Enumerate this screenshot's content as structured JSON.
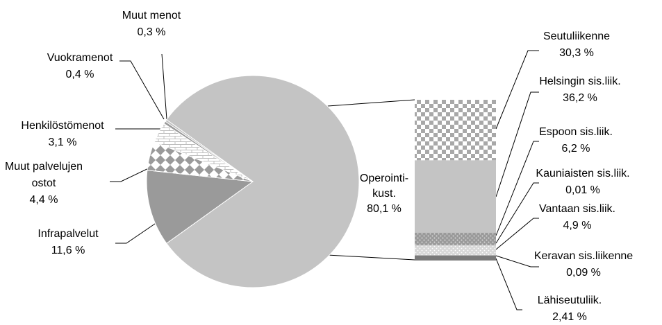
{
  "chart_data": {
    "type": "pie",
    "title": "",
    "pie": {
      "slices": [
        {
          "label": "Operointi-kust.",
          "label_lines": [
            "Operointi-",
            "kust."
          ],
          "value_text": "80,1 %",
          "value": 80.1,
          "color": "#c4c4c4",
          "pattern": "solid"
        },
        {
          "label": "Infrapalvelut",
          "label_lines": [
            "Infrapalvelut"
          ],
          "value_text": "11,6 %",
          "value": 11.6,
          "color": "#9a9a9a",
          "pattern": "solid"
        },
        {
          "label": "Muut palvelujen ostot",
          "label_lines": [
            "Muut palvelujen",
            "ostot"
          ],
          "value_text": "4,4 %",
          "value": 4.4,
          "color": "#9a9a9a",
          "pattern": "diamond"
        },
        {
          "label": "Henkilöstömenot",
          "label_lines": [
            "Henkilöstömenot"
          ],
          "value_text": "3,1 %",
          "value": 3.1,
          "color": "#ffffff",
          "pattern": "brick"
        },
        {
          "label": "Vuokramenot",
          "label_lines": [
            "Vuokramenot"
          ],
          "value_text": "0,4 %",
          "value": 0.4,
          "color": "#9a9a9a",
          "pattern": "solid"
        },
        {
          "label": "Muut menot",
          "label_lines": [
            "Muut menot"
          ],
          "value_text": "0,3 %",
          "value": 0.3,
          "color": "#bdbdbd",
          "pattern": "solid"
        }
      ]
    },
    "breakdown": {
      "parent": "Operointi-kust.",
      "segments": [
        {
          "label": "Seutuliikenne",
          "value_text": "30,3 %",
          "value": 30.3,
          "color": "#c4c4c4",
          "pattern": "checker"
        },
        {
          "label": "Helsingin sis.liik.",
          "value_text": "36,2 %",
          "value": 36.2,
          "color": "#c4c4c4",
          "pattern": "solid"
        },
        {
          "label": "Espoon sis.liik.",
          "value_text": "6,2 %",
          "value": 6.2,
          "color": "#9a9a9a",
          "pattern": "dots"
        },
        {
          "label": "Kauniaisten sis.liik.",
          "value_text": "0,01 %",
          "value": 0.01,
          "color": "#9a9a9a",
          "pattern": "solid"
        },
        {
          "label": "Vantaan sis.liik.",
          "value_text": "4,9 %",
          "value": 4.9,
          "color": "#d6d6d6",
          "pattern": "dots"
        },
        {
          "label": "Keravan sis.liikenne",
          "value_text": "0,09 %",
          "value": 0.09,
          "color": "#9a9a9a",
          "pattern": "solid"
        },
        {
          "label": "Lähiseutuliik.",
          "value_text": "2,41 %",
          "value": 2.41,
          "color": "#7a7a7a",
          "pattern": "solid"
        }
      ]
    }
  }
}
